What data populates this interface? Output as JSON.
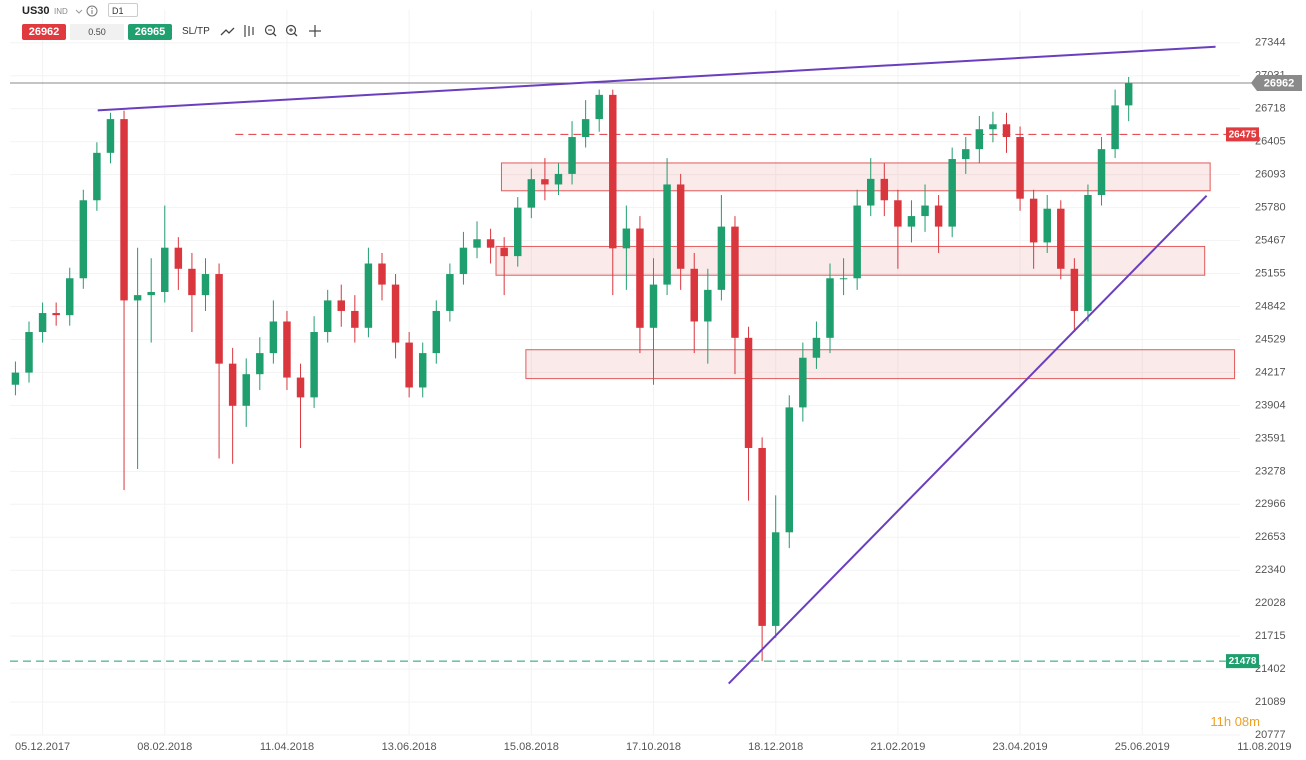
{
  "toolbar": {
    "symbol": "US30",
    "market": "IND",
    "timeframe": "D1",
    "bid": 26962,
    "spread": {
      "value": 0.5,
      "label": "0.50"
    },
    "ask": 26965,
    "sltp": "SL/TP"
  },
  "countdown": "11h 08m",
  "chart_data": {
    "type": "candlestick",
    "up_color": "#1f9e6e",
    "down_color": "#d9363e",
    "grid": true,
    "xlim": [
      -12,
      441
    ],
    "ylim": [
      20777,
      27655
    ],
    "xticks": [
      {
        "value": 0,
        "label": "05.12.2017"
      },
      {
        "value": 45,
        "label": "08.02.2018"
      },
      {
        "value": 90,
        "label": "11.04.2018"
      },
      {
        "value": 135,
        "label": "13.06.2018"
      },
      {
        "value": 180,
        "label": "15.08.2018"
      },
      {
        "value": 225,
        "label": "17.10.2018"
      },
      {
        "value": 270,
        "label": "18.12.2018"
      },
      {
        "value": 315,
        "label": "21.02.2019"
      },
      {
        "value": 360,
        "label": "23.04.2019"
      },
      {
        "value": 405,
        "label": "25.06.2019"
      },
      {
        "value": 450,
        "label": "11.08.2019"
      }
    ],
    "yticks": [
      27344,
      27031,
      26718,
      26405,
      26093,
      25780,
      25467,
      25155,
      24842,
      24529,
      24217,
      23904,
      23591,
      23278,
      22966,
      22653,
      22340,
      22028,
      21715,
      21402,
      21089,
      20777
    ],
    "x": [
      -10,
      -5,
      0,
      5,
      10,
      15,
      20,
      25,
      30,
      35,
      40,
      45,
      50,
      55,
      60,
      65,
      70,
      75,
      80,
      85,
      90,
      95,
      100,
      105,
      110,
      115,
      120,
      125,
      130,
      135,
      140,
      145,
      150,
      155,
      160,
      165,
      170,
      175,
      180,
      185,
      190,
      195,
      200,
      205,
      210,
      215,
      220,
      225,
      230,
      235,
      240,
      245,
      250,
      255,
      260,
      265,
      270,
      275,
      280,
      285,
      290,
      295,
      300,
      305,
      310,
      315,
      320,
      325,
      330,
      335,
      340,
      345,
      350,
      355,
      360,
      365,
      370,
      375,
      380,
      385,
      390,
      395,
      400
    ],
    "open": [
      24100,
      24215,
      24600,
      24780,
      24760,
      25110,
      25850,
      26300,
      26620,
      24900,
      24950,
      24980,
      25400,
      25200,
      24950,
      25150,
      24300,
      23900,
      24200,
      24400,
      24700,
      24168,
      23980,
      24600,
      24900,
      24800,
      24640,
      25250,
      25050,
      24500,
      24074,
      24400,
      24800,
      25150,
      25400,
      25480,
      25400,
      25320,
      25780,
      26050,
      26000,
      26100,
      26450,
      26620,
      26850,
      25394,
      25582,
      24640,
      25050,
      26000,
      25200,
      24700,
      25000,
      25600,
      24545,
      23500,
      21812,
      22700,
      23885,
      24356,
      24545,
      25110,
      25110,
      25800,
      26053,
      25850,
      25600,
      25700,
      25800,
      25600,
      26241,
      26335,
      26524,
      26571,
      26450,
      25865,
      25450,
      25770,
      25200,
      24800,
      25900,
      26335,
      26750
    ],
    "high": [
      24320,
      24700,
      24880,
      24880,
      25210,
      25950,
      26400,
      26680,
      26700,
      25400,
      25300,
      25800,
      25500,
      25350,
      25300,
      25250,
      24450,
      24350,
      24550,
      24900,
      24800,
      24300,
      24750,
      25000,
      25050,
      24950,
      25400,
      25350,
      25150,
      24600,
      24500,
      24900,
      25250,
      25550,
      25650,
      25580,
      25500,
      25880,
      26150,
      26250,
      26200,
      26600,
      26800,
      26900,
      26900,
      25800,
      25700,
      25300,
      26250,
      26100,
      25350,
      25200,
      25900,
      25700,
      24650,
      23600,
      23050,
      24000,
      24500,
      24700,
      25250,
      25300,
      25950,
      26250,
      26200,
      25950,
      25850,
      26000,
      25900,
      26350,
      26450,
      26650,
      26690,
      26680,
      26550,
      25950,
      25900,
      25850,
      25300,
      26000,
      26450,
      26900,
      27020
    ],
    "low": [
      24000,
      24120,
      24500,
      24660,
      24660,
      25010,
      25750,
      26200,
      23100,
      23300,
      24500,
      24880,
      25000,
      24600,
      24800,
      23400,
      23350,
      23700,
      24050,
      24300,
      24050,
      23500,
      23880,
      24500,
      24650,
      24500,
      24550,
      24900,
      24350,
      23980,
      23980,
      24300,
      24700,
      25050,
      25300,
      25250,
      24950,
      25220,
      25680,
      25850,
      25900,
      26000,
      26350,
      26500,
      24950,
      25000,
      24400,
      24100,
      24950,
      25000,
      24400,
      24300,
      24900,
      24200,
      23000,
      21478,
      21700,
      22550,
      23750,
      24250,
      24400,
      24950,
      25000,
      25700,
      25700,
      25200,
      25450,
      25550,
      25350,
      25500,
      26100,
      26200,
      26400,
      26300,
      25750,
      25200,
      25350,
      25100,
      24600,
      24700,
      25800,
      26250,
      26600
    ],
    "close": [
      24215,
      24600,
      24780,
      24760,
      25110,
      25850,
      26300,
      26620,
      24900,
      24950,
      24980,
      25400,
      25200,
      24950,
      25150,
      24300,
      23900,
      24200,
      24400,
      24700,
      24168,
      23980,
      24600,
      24900,
      24800,
      24640,
      25250,
      25050,
      24500,
      24074,
      24400,
      24800,
      25150,
      25400,
      25480,
      25400,
      25320,
      25780,
      26050,
      26000,
      26100,
      26450,
      26620,
      26850,
      25394,
      25582,
      24640,
      25050,
      26000,
      25200,
      24700,
      25000,
      25600,
      24545,
      23500,
      21812,
      22700,
      23885,
      24356,
      24545,
      25110,
      25110,
      25800,
      26053,
      25850,
      25600,
      25700,
      25800,
      25600,
      26241,
      26335,
      26524,
      26571,
      26450,
      25865,
      25450,
      25770,
      25200,
      24800,
      25900,
      26335,
      26750,
      26962
    ],
    "current_price": 26962,
    "levels": [
      {
        "value": 26475,
        "color": "#e0393e",
        "x_start": 71
      },
      {
        "value": 21478,
        "color": "#1f9e6e",
        "x_start": -12
      }
    ],
    "zones": [
      {
        "x": [
          169,
          430
        ],
        "y": [
          25940,
          26204
        ]
      },
      {
        "x": [
          167,
          428
        ],
        "y": [
          25139,
          25412
        ]
      },
      {
        "x": [
          178,
          439
        ],
        "y": [
          24158,
          24432
        ]
      }
    ],
    "zone_color": "#e05a5a",
    "trendlines": [
      {
        "x": [
          20.3,
          432
        ],
        "y": [
          26703,
          27306
        ]
      },
      {
        "x": [
          252.7,
          428.7
        ],
        "y": [
          21265,
          25893
        ]
      }
    ],
    "trendline_color": "#6a3fbf"
  }
}
